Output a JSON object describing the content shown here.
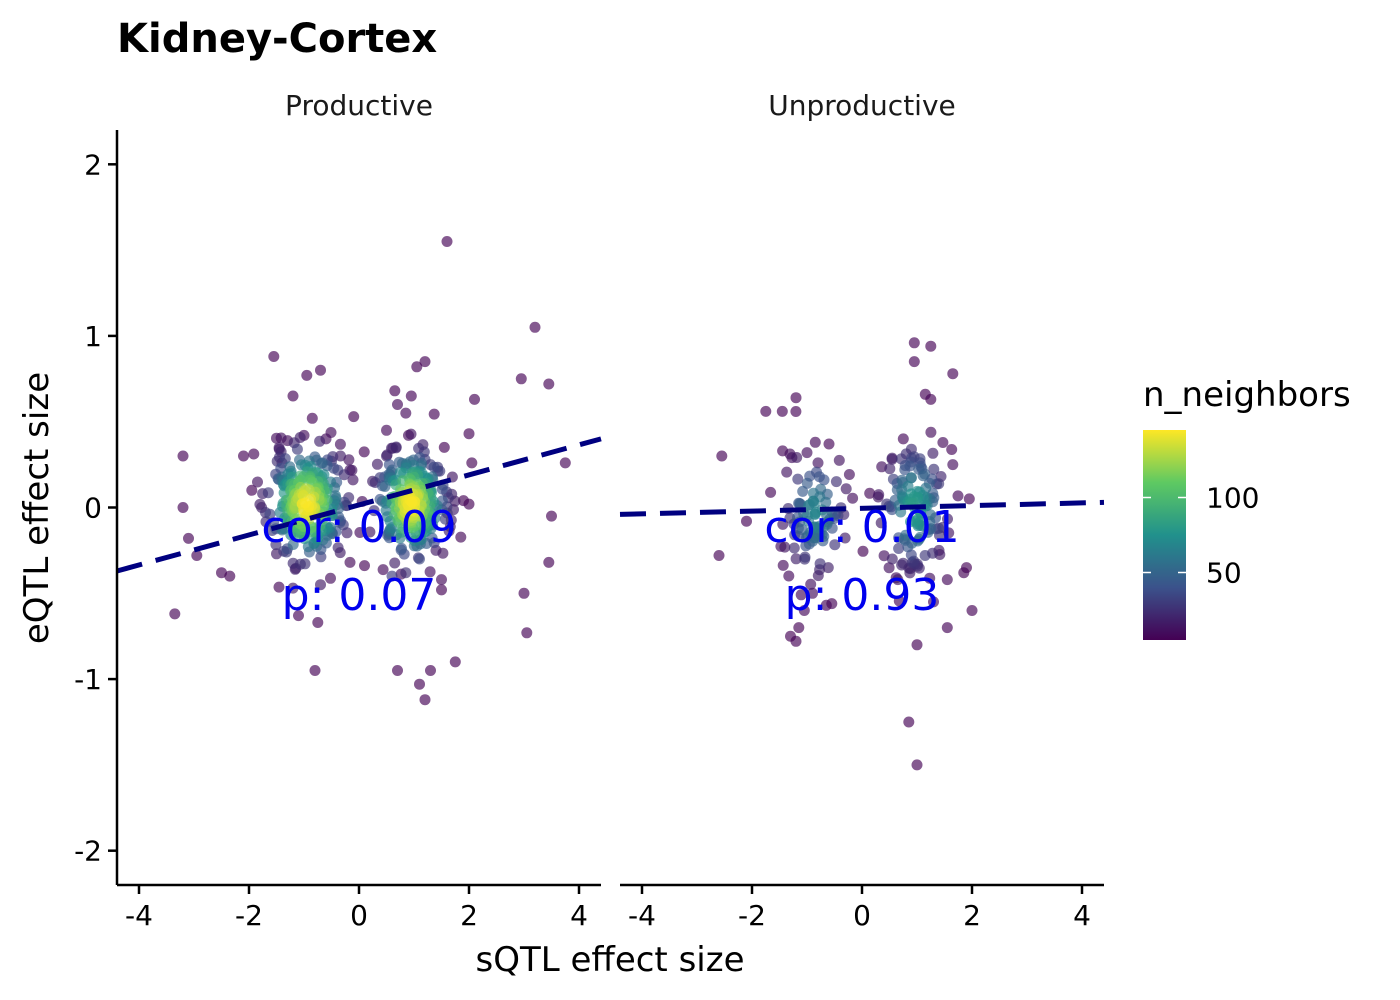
{
  "chart_data": {
    "type": "scatter",
    "title": "Kidney-Cortex",
    "xlabel": "sQTL effect size",
    "ylabel": "eQTL effect size",
    "xlim": [
      -4.4,
      4.4
    ],
    "ylim": [
      -2.2,
      2.2
    ],
    "x_ticks": [
      -4,
      -2,
      0,
      2,
      4
    ],
    "y_ticks": [
      -2,
      -1,
      0,
      1,
      2
    ],
    "x_tick_labels": [
      "-4",
      "-2",
      "0",
      "2",
      "4"
    ],
    "y_tick_labels": [
      "-2",
      "-1",
      "0",
      "1",
      "2"
    ],
    "legend": {
      "title": "n_neighbors",
      "ticks": [
        50,
        100
      ],
      "tick_labels": [
        "50",
        "100"
      ],
      "range": [
        5,
        145
      ],
      "colormap": "viridis",
      "colors": [
        "#440154",
        "#3b528b",
        "#21918c",
        "#5ec962",
        "#fde725"
      ],
      "placement": "right"
    },
    "grid": false,
    "marker_alpha": 0.65,
    "line_color": "#000080",
    "annotation_color": "#0000ee",
    "panels": [
      {
        "name": "Productive",
        "cor_label": "cor: 0.09",
        "p_label": "p: 0.07",
        "fit_line": {
          "x": [
            -4.4,
            4.4
          ],
          "y": [
            -0.37,
            0.4
          ]
        },
        "points": [
          [
            -3.2,
            0.3,
            5
          ],
          [
            -3.35,
            -0.62,
            5
          ],
          [
            -3.2,
            0.0,
            5
          ],
          [
            -3.1,
            -0.18,
            5
          ],
          [
            -2.95,
            -0.28,
            5
          ],
          [
            -2.5,
            -0.38,
            5
          ],
          [
            -2.35,
            -0.4,
            5
          ],
          [
            -2.1,
            0.3,
            5
          ],
          [
            -1.95,
            0.1,
            5
          ],
          [
            -1.55,
            0.88,
            5
          ],
          [
            -1.2,
            0.65,
            5
          ],
          [
            -0.95,
            0.77,
            5
          ],
          [
            -0.7,
            0.8,
            5
          ],
          [
            -0.85,
            0.52,
            6
          ],
          [
            -0.8,
            -0.95,
            5
          ],
          [
            -0.75,
            -0.67,
            5
          ],
          [
            -1.1,
            -0.63,
            6
          ],
          [
            -1.45,
            0.34,
            15
          ],
          [
            -1.4,
            0.26,
            20
          ],
          [
            -1.5,
            -0.27,
            15
          ],
          [
            -1.2,
            -0.47,
            15
          ],
          [
            -0.7,
            -0.45,
            15
          ],
          [
            -0.5,
            0.27,
            25
          ],
          [
            -0.6,
            0.4,
            10
          ],
          [
            -1.0,
            0.42,
            10
          ],
          [
            -1.3,
            0.39,
            10
          ],
          [
            3.2,
            1.05,
            5
          ],
          [
            1.6,
            1.55,
            5
          ],
          [
            1.2,
            0.85,
            5
          ],
          [
            1.05,
            0.82,
            5
          ],
          [
            0.85,
            0.55,
            8
          ],
          [
            0.65,
            0.68,
            5
          ],
          [
            0.95,
            0.65,
            6
          ],
          [
            0.7,
            0.6,
            8
          ],
          [
            2.95,
            0.75,
            5
          ],
          [
            3.45,
            0.72,
            5
          ],
          [
            2.1,
            0.63,
            5
          ],
          [
            2.0,
            0.43,
            5
          ],
          [
            2.05,
            0.26,
            5
          ],
          [
            3.75,
            0.26,
            5
          ],
          [
            1.9,
            0.04,
            5
          ],
          [
            2.0,
            0.02,
            5
          ],
          [
            3.5,
            -0.05,
            5
          ],
          [
            3.45,
            -0.32,
            5
          ],
          [
            3.0,
            -0.5,
            5
          ],
          [
            3.05,
            -0.73,
            5
          ],
          [
            1.75,
            -0.9,
            5
          ],
          [
            1.3,
            -0.95,
            5
          ],
          [
            0.7,
            -0.95,
            5
          ],
          [
            1.1,
            -1.03,
            5
          ],
          [
            1.2,
            -1.12,
            5
          ],
          [
            1.5,
            -0.42,
            8
          ],
          [
            1.5,
            -0.48,
            5
          ],
          [
            1.4,
            -0.25,
            15
          ],
          [
            1.55,
            0.35,
            5
          ],
          [
            0.5,
            0.45,
            8
          ],
          [
            0.9,
            0.42,
            8
          ],
          [
            1.2,
            0.28,
            30
          ],
          [
            1.3,
            0.25,
            30
          ],
          [
            0.6,
            -0.4,
            30
          ],
          [
            0.85,
            -0.38,
            25
          ],
          [
            1.1,
            -0.3,
            35
          ],
          [
            0.55,
            0.25,
            40
          ]
        ],
        "clusters": [
          {
            "cx": -0.95,
            "cy": 0.02,
            "sx": 0.36,
            "sy": 0.17,
            "n": 260,
            "seed": 11
          },
          {
            "cx": 0.95,
            "cy": 0.02,
            "sx": 0.33,
            "sy": 0.16,
            "n": 230,
            "seed": 23
          }
        ]
      },
      {
        "name": "Unproductive",
        "cor_label": "cor: 0.01",
        "p_label": "p: 0.93",
        "fit_line": {
          "x": [
            -4.4,
            4.4
          ],
          "y": [
            -0.04,
            0.03
          ]
        },
        "points": [
          [
            -2.55,
            0.3,
            5
          ],
          [
            -2.6,
            -0.28,
            5
          ],
          [
            -2.1,
            -0.08,
            5
          ],
          [
            -1.75,
            0.56,
            5
          ],
          [
            -1.45,
            0.56,
            5
          ],
          [
            -1.2,
            0.64,
            5
          ],
          [
            -0.85,
            0.38,
            8
          ],
          [
            -0.6,
            0.37,
            6
          ],
          [
            -1.0,
            0.32,
            10
          ],
          [
            -0.8,
            0.26,
            12
          ],
          [
            -1.2,
            -0.78,
            5
          ],
          [
            -1.3,
            -0.75,
            5
          ],
          [
            -1.15,
            -0.7,
            5
          ],
          [
            -1.05,
            -0.6,
            8
          ],
          [
            -0.65,
            -0.57,
            6
          ],
          [
            -0.55,
            -0.56,
            5
          ],
          [
            -0.9,
            -0.5,
            10
          ],
          [
            0.95,
            0.96,
            5
          ],
          [
            1.25,
            0.94,
            5
          ],
          [
            0.95,
            0.85,
            5
          ],
          [
            1.65,
            0.78,
            5
          ],
          [
            1.15,
            0.66,
            5
          ],
          [
            1.25,
            0.63,
            5
          ],
          [
            0.75,
            0.4,
            8
          ],
          [
            1.65,
            0.25,
            10
          ],
          [
            1.95,
            0.05,
            5
          ],
          [
            2.0,
            -0.6,
            5
          ],
          [
            1.85,
            -0.38,
            5
          ],
          [
            1.9,
            -0.35,
            5
          ],
          [
            1.55,
            -0.42,
            8
          ],
          [
            1.55,
            -0.7,
            6
          ],
          [
            1.3,
            -0.55,
            8
          ],
          [
            1.0,
            -0.8,
            5
          ],
          [
            0.85,
            -1.25,
            5
          ],
          [
            1.0,
            -1.5,
            5
          ],
          [
            0.65,
            -0.42,
            15
          ],
          [
            0.55,
            -0.3,
            20
          ],
          [
            1.4,
            -0.25,
            15
          ]
        ],
        "clusters": [
          {
            "cx": -0.85,
            "cy": -0.03,
            "sx": 0.3,
            "sy": 0.19,
            "n": 95,
            "seed": 37,
            "nscale": 0.45
          },
          {
            "cx": 0.95,
            "cy": 0.0,
            "sx": 0.3,
            "sy": 0.19,
            "n": 130,
            "seed": 53,
            "nscale": 0.55
          }
        ]
      }
    ]
  }
}
